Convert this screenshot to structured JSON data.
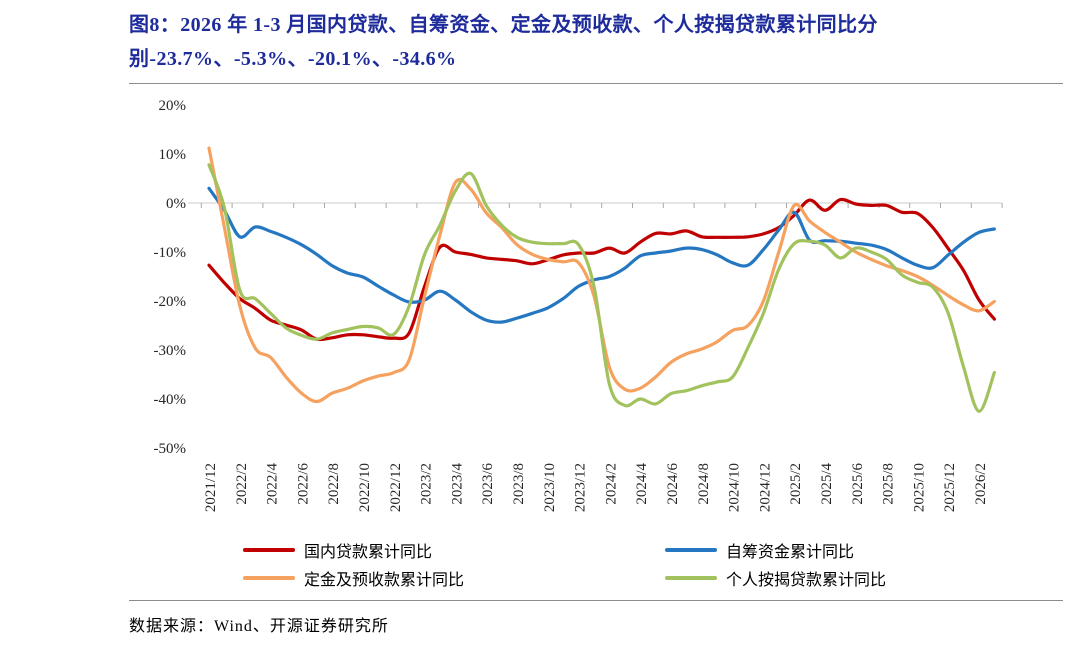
{
  "figure": {
    "title_line1": "图8：2026 年 1-3 月国内贷款、自筹资金、定金及预收款、个人按揭贷款累计同比分",
    "title_line2": "别-23.7%、-5.3%、-20.1%、-34.6%",
    "source_note": "数据来源：Wind、开源证券研究所"
  },
  "colors": {
    "title": "#1E2B9B",
    "red": "#C00000",
    "blue": "#2577C2",
    "orange": "#F5A15F",
    "green": "#A2C25E",
    "axis_line": "#D6D6D6",
    "tick": "#A8A8A8",
    "axis_text": "#262626",
    "divider": "#8C8C8C"
  },
  "legend": {
    "items": [
      {
        "label": "国内贷款累计同比",
        "color_key": "red"
      },
      {
        "label": "自筹资金累计同比",
        "color_key": "blue"
      },
      {
        "label": "定金及预收款累计同比",
        "color_key": "orange"
      },
      {
        "label": "个人按揭贷款累计同比",
        "color_key": "green"
      }
    ]
  },
  "chart_data": {
    "type": "line",
    "y_unit": "%",
    "ylim": [
      -50,
      20
    ],
    "y_ticks": [
      20,
      10,
      0,
      -10,
      -20,
      -30,
      -40,
      -50
    ],
    "y_tick_labels": [
      "20%",
      "10%",
      "0%",
      "-10%",
      "-20%",
      "-30%",
      "-40%",
      "-50%"
    ],
    "x_tick_step": 2,
    "grid": "zero-axis-only",
    "legend_position": "bottom",
    "categories": [
      "2021/12",
      "2022/1",
      "2022/2",
      "2022/3",
      "2022/4",
      "2022/5",
      "2022/6",
      "2022/7",
      "2022/8",
      "2022/9",
      "2022/10",
      "2022/11",
      "2022/12",
      "2023/1",
      "2023/2",
      "2023/3",
      "2023/4",
      "2023/5",
      "2023/6",
      "2023/7",
      "2023/8",
      "2023/9",
      "2023/10",
      "2023/11",
      "2023/12",
      "2024/1",
      "2024/2",
      "2024/3",
      "2024/4",
      "2024/5",
      "2024/6",
      "2024/7",
      "2024/8",
      "2024/9",
      "2024/10",
      "2024/11",
      "2024/12",
      "2025/1",
      "2025/2",
      "2025/3",
      "2025/4",
      "2025/5",
      "2025/6",
      "2025/7",
      "2025/8",
      "2025/9",
      "2025/10",
      "2025/11",
      "2025/12",
      "2026/1",
      "2026/2",
      "2026/3"
    ],
    "series": [
      {
        "name": "国内贷款累计同比",
        "color_key": "red",
        "values": [
          -12.7,
          -16.3,
          -19.5,
          -21.5,
          -23.9,
          -24.9,
          -25.9,
          -27.8,
          -27.5,
          -26.9,
          -26.9,
          -27.3,
          -27.6,
          -26.5,
          -17.0,
          -9.0,
          -10.0,
          -10.5,
          -11.2,
          -11.5,
          -11.8,
          -12.4,
          -11.6,
          -10.6,
          -10.2,
          -10.2,
          -9.2,
          -10.2,
          -8.0,
          -6.2,
          -6.3,
          -5.7,
          -6.9,
          -7.0,
          -7.0,
          -6.9,
          -6.3,
          -5.0,
          -2.5,
          0.6,
          -1.5,
          0.7,
          -0.2,
          -0.5,
          -0.5,
          -1.9,
          -2.1,
          -5.0,
          -9.3,
          -13.8,
          -19.8,
          -23.7
        ]
      },
      {
        "name": "自筹资金累计同比",
        "color_key": "blue",
        "values": [
          3.0,
          -1.5,
          -6.9,
          -4.9,
          -5.8,
          -7.0,
          -8.5,
          -10.5,
          -12.8,
          -14.3,
          -15.1,
          -17.0,
          -18.8,
          -20.2,
          -19.8,
          -18.0,
          -19.8,
          -22.2,
          -23.9,
          -24.3,
          -23.5,
          -22.5,
          -21.4,
          -19.5,
          -17.0,
          -15.7,
          -15.0,
          -13.3,
          -10.8,
          -10.2,
          -9.8,
          -9.2,
          -9.5,
          -10.6,
          -12.2,
          -12.7,
          -9.5,
          -5.5,
          -1.9,
          -7.6,
          -7.7,
          -7.8,
          -8.2,
          -8.6,
          -9.5,
          -11.2,
          -12.7,
          -13.2,
          -10.6,
          -8.0,
          -6.0,
          -5.3
        ]
      },
      {
        "name": "定金及预收款累计同比",
        "color_key": "orange",
        "values": [
          11.2,
          -5.0,
          -21.0,
          -29.6,
          -31.5,
          -35.5,
          -38.8,
          -40.5,
          -38.8,
          -37.8,
          -36.3,
          -35.3,
          -34.6,
          -32.0,
          -19.0,
          -6.5,
          4.2,
          2.8,
          -2.0,
          -5.0,
          -8.5,
          -10.5,
          -11.5,
          -12.0,
          -12.2,
          -19.0,
          -33.5,
          -38.0,
          -37.8,
          -35.5,
          -32.5,
          -30.8,
          -29.8,
          -28.3,
          -26.0,
          -25.0,
          -20.0,
          -10.0,
          -0.5,
          -3.7,
          -6.0,
          -8.0,
          -10.0,
          -11.5,
          -12.8,
          -13.8,
          -15.0,
          -16.8,
          -18.9,
          -20.8,
          -22.0,
          -20.1
        ]
      },
      {
        "name": "个人按揭贷款累计同比",
        "color_key": "green",
        "values": [
          7.8,
          -1.0,
          -17.8,
          -19.5,
          -22.5,
          -25.5,
          -27.0,
          -27.8,
          -26.5,
          -25.8,
          -25.2,
          -25.5,
          -26.8,
          -21.0,
          -10.5,
          -4.5,
          2.5,
          6.0,
          -0.5,
          -4.5,
          -7.0,
          -8.0,
          -8.3,
          -8.3,
          -8.5,
          -17.0,
          -37.0,
          -41.3,
          -40.0,
          -41.0,
          -38.9,
          -38.3,
          -37.3,
          -36.5,
          -35.5,
          -29.5,
          -22.5,
          -13.5,
          -8.3,
          -7.8,
          -8.6,
          -11.2,
          -9.2,
          -10.0,
          -11.5,
          -14.7,
          -16.2,
          -17.2,
          -22.5,
          -33.5,
          -42.5,
          -34.6
        ]
      }
    ]
  }
}
